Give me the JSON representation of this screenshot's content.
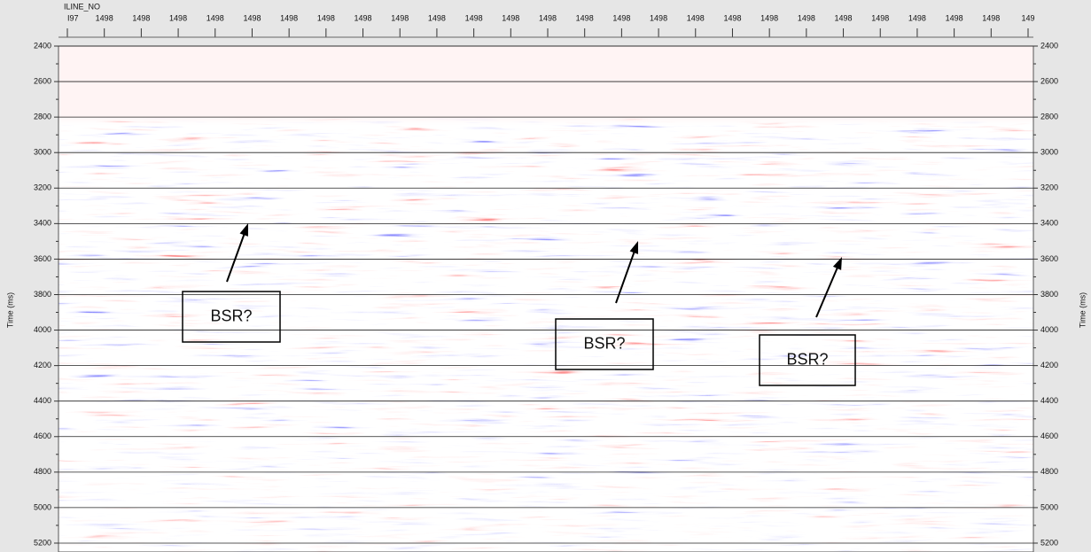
{
  "chart_data": {
    "type": "seismic",
    "x_label": "ILINE_NO",
    "y_label": "Time (ms)",
    "categories": [
      "I97",
      "1498",
      "1498",
      "1498",
      "1498",
      "1498",
      "1498",
      "1498",
      "1498",
      "1498",
      "1498",
      "1498",
      "1498",
      "1498",
      "1498",
      "1498",
      "1498",
      "1498",
      "1498",
      "1498",
      "1498",
      "1498",
      "1498",
      "1498",
      "1498",
      "1498",
      "149"
    ],
    "ylim": [
      2400,
      5250
    ],
    "yticks": [
      2400,
      2600,
      2800,
      3000,
      3200,
      3400,
      3600,
      3800,
      4000,
      4200,
      4400,
      4600,
      4800,
      5000,
      5200
    ],
    "grid": true,
    "annotations": [
      {
        "text": "BSR?"
      },
      {
        "text": "BSR?"
      },
      {
        "text": "BSR?"
      }
    ]
  }
}
